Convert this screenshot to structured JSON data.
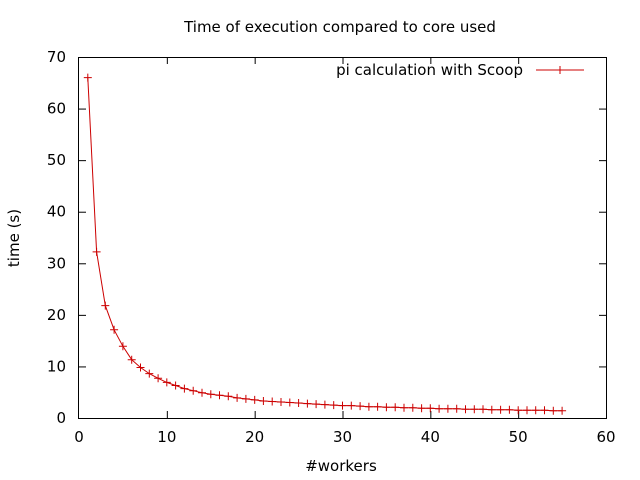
{
  "chart_data": {
    "type": "line",
    "title": "Time of execution compared to core used",
    "xlabel": "#workers",
    "ylabel": "time (s)",
    "xlim": [
      0,
      60
    ],
    "ylim": [
      0,
      70
    ],
    "x_ticks": [
      0,
      10,
      20,
      30,
      40,
      50,
      60
    ],
    "y_ticks": [
      0,
      10,
      20,
      30,
      40,
      50,
      60,
      70
    ],
    "grid": false,
    "legend_position": "top-right",
    "series": [
      {
        "name": "pi calculation with Scoop",
        "color": "#cc0000",
        "marker": "plus",
        "x": [
          1,
          2,
          3,
          4,
          5,
          6,
          7,
          8,
          9,
          10,
          11,
          12,
          13,
          14,
          15,
          16,
          17,
          18,
          19,
          20,
          21,
          22,
          23,
          24,
          25,
          26,
          27,
          28,
          29,
          30,
          31,
          32,
          33,
          34,
          35,
          36,
          37,
          38,
          39,
          40,
          41,
          42,
          43,
          44,
          45,
          46,
          47,
          48,
          49,
          50,
          51,
          52,
          53,
          54,
          55
        ],
        "y": [
          66,
          32.2,
          21.8,
          17.1,
          13.9,
          11.3,
          9.8,
          8.6,
          7.7,
          6.9,
          6.3,
          5.7,
          5.3,
          4.9,
          4.6,
          4.4,
          4.2,
          3.9,
          3.7,
          3.5,
          3.3,
          3.2,
          3.1,
          3.0,
          2.9,
          2.8,
          2.7,
          2.6,
          2.5,
          2.4,
          2.4,
          2.3,
          2.2,
          2.2,
          2.1,
          2.1,
          2.0,
          2.0,
          1.9,
          1.9,
          1.8,
          1.8,
          1.8,
          1.7,
          1.7,
          1.7,
          1.6,
          1.6,
          1.6,
          1.5,
          1.5,
          1.5,
          1.5,
          1.4,
          1.4
        ]
      }
    ]
  }
}
